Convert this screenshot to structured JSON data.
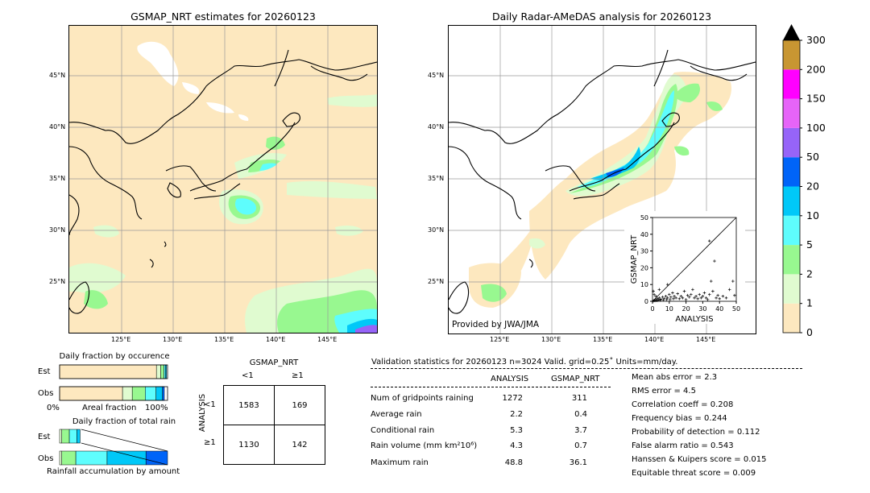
{
  "left_map": {
    "title": "GSMAP_NRT estimates for 20260123",
    "lat_labels": [
      "45°N",
      "40°N",
      "35°N",
      "30°N",
      "25°N"
    ],
    "lon_labels": [
      "125°E",
      "130°E",
      "135°E",
      "140°E",
      "145°E"
    ]
  },
  "right_map": {
    "title": "Daily Radar-AMeDAS analysis for 20260123",
    "lat_labels": [
      "45°N",
      "40°N",
      "35°N",
      "30°N",
      "25°N"
    ],
    "lon_labels": [
      "125°E",
      "130°E",
      "135°E",
      "140°E",
      "145°E"
    ],
    "credit": "Provided by JWA/JMA"
  },
  "colorbar": {
    "levels": [
      "0",
      "1",
      "2",
      "5",
      "10",
      "20",
      "50",
      "100",
      "150",
      "200",
      "300"
    ],
    "colors": [
      "#fde8bf",
      "#e0fbd0",
      "#98f890",
      "#5efdfd",
      "#00c8f8",
      "#0064f8",
      "#9664f8",
      "#e664f8",
      "#ff00ff",
      "#c89632"
    ],
    "extend_color": "#000000"
  },
  "chart_data": [
    {
      "type": "scatter",
      "xlabel": "ANALYSIS",
      "ylabel": "GSMAP_NRT",
      "xlim": [
        0,
        50
      ],
      "ylim": [
        0,
        50
      ],
      "xticks": [
        "0",
        "10",
        "20",
        "30",
        "40",
        "50"
      ],
      "yticks": [
        "0",
        "10",
        "20",
        "30",
        "40",
        "50"
      ],
      "points": [
        [
          0.5,
          0.2
        ],
        [
          1,
          0.5
        ],
        [
          1.5,
          0.3
        ],
        [
          2,
          1
        ],
        [
          2.5,
          0.4
        ],
        [
          3,
          1.5
        ],
        [
          3.5,
          0.8
        ],
        [
          4,
          2
        ],
        [
          4.5,
          0.6
        ],
        [
          5,
          1.2
        ],
        [
          6,
          2.5
        ],
        [
          6.5,
          0.8
        ],
        [
          7,
          1.6
        ],
        [
          8,
          3
        ],
        [
          8.5,
          1
        ],
        [
          9,
          2
        ],
        [
          10,
          4
        ],
        [
          10.5,
          1
        ],
        [
          11,
          2.5
        ],
        [
          12,
          5
        ],
        [
          12.5,
          1.5
        ],
        [
          13,
          3
        ],
        [
          14,
          2
        ],
        [
          15,
          4.5
        ],
        [
          16,
          1.5
        ],
        [
          17,
          3
        ],
        [
          18,
          2
        ],
        [
          19,
          6
        ],
        [
          20,
          1
        ],
        [
          21,
          3.5
        ],
        [
          22,
          2.5
        ],
        [
          23,
          4
        ],
        [
          24,
          7
        ],
        [
          25,
          2
        ],
        [
          26,
          3
        ],
        [
          27,
          1.5
        ],
        [
          28,
          4
        ],
        [
          29,
          2
        ],
        [
          30,
          3
        ],
        [
          31,
          5
        ],
        [
          32,
          2
        ],
        [
          33,
          1
        ],
        [
          34,
          4
        ],
        [
          35,
          12
        ],
        [
          36,
          6
        ],
        [
          37,
          24
        ],
        [
          38,
          2
        ],
        [
          39,
          3.5
        ],
        [
          40,
          1.5
        ],
        [
          42,
          3
        ],
        [
          44,
          2
        ],
        [
          46,
          7
        ],
        [
          48,
          12
        ],
        [
          49,
          3.5
        ],
        [
          34,
          36
        ],
        [
          9,
          10
        ],
        [
          4,
          7
        ],
        [
          2,
          3
        ],
        [
          1,
          4
        ],
        [
          0.5,
          6
        ]
      ]
    },
    {
      "type": "bar",
      "title": "Daily fraction by occurence",
      "categories": [
        "Est",
        "Obs"
      ],
      "series": [
        {
          "color": "#fde8bf",
          "values": [
            0.897,
            0.583
          ]
        },
        {
          "color": "#e0fbd0",
          "values": [
            0.04,
            0.09
          ]
        },
        {
          "color": "#98f890",
          "values": [
            0.03,
            0.12
          ]
        },
        {
          "color": "#5efdfd",
          "values": [
            0.013,
            0.1
          ]
        },
        {
          "color": "#00c8f8",
          "values": [
            0.01,
            0.06
          ]
        },
        {
          "color": "#0064f8",
          "values": [
            0,
            0.017
          ]
        }
      ],
      "xlabel_left": "0%",
      "xlabel_mid": "Areal fraction",
      "xlabel_right": "100%"
    },
    {
      "type": "bar",
      "title": "Daily fraction of total rain",
      "categories": [
        "Est",
        "Obs"
      ],
      "series": [
        {
          "color": "#e0fbd0",
          "values": [
            0.02,
            0.02
          ]
        },
        {
          "color": "#98f890",
          "values": [
            0.07,
            0.13
          ]
        },
        {
          "color": "#5efdfd",
          "values": [
            0.07,
            0.29
          ]
        },
        {
          "color": "#00c8f8",
          "values": [
            0.03,
            0.36
          ]
        },
        {
          "color": "#0064f8",
          "values": [
            0,
            0.2
          ]
        }
      ],
      "est_total": 0.2,
      "obs_total": 1.0,
      "xlabel": "Rainfall accumulation by amount"
    },
    {
      "type": "table",
      "title": "GSMAP_NRT",
      "col_headers": [
        "<1",
        "≥1"
      ],
      "row_label": "ANALYSIS",
      "row_headers": [
        "<1",
        "≥1"
      ],
      "cells": [
        [
          "1583",
          "169"
        ],
        [
          "1130",
          "142"
        ]
      ]
    }
  ],
  "validation": {
    "header": "Validation statistics for 20260123  n=3024 Valid. grid=0.25˚ Units=mm/day.",
    "col_analysis": "ANALYSIS",
    "col_gsmap": "GSMAP_NRT",
    "rows": [
      {
        "label": "Num of gridpoints raining",
        "analysis": "1272",
        "gsmap": "311"
      },
      {
        "label": "Average rain",
        "analysis": "2.2",
        "gsmap": "0.4"
      },
      {
        "label": "Conditional rain",
        "analysis": "5.3",
        "gsmap": "3.7"
      },
      {
        "label": "Rain volume (mm km²10⁶)",
        "analysis": "4.3",
        "gsmap": "0.7"
      },
      {
        "label": "Maximum rain",
        "analysis": "48.8",
        "gsmap": "36.1"
      }
    ],
    "scores": [
      "Mean abs error =    2.3",
      "RMS error =    4.5",
      "Correlation coeff =  0.208",
      "Frequency bias =  0.244",
      "Probability of detection =  0.112",
      "False alarm ratio =  0.543",
      "Hanssen & Kuipers score =  0.015",
      "Equitable threat score =  0.009"
    ]
  }
}
